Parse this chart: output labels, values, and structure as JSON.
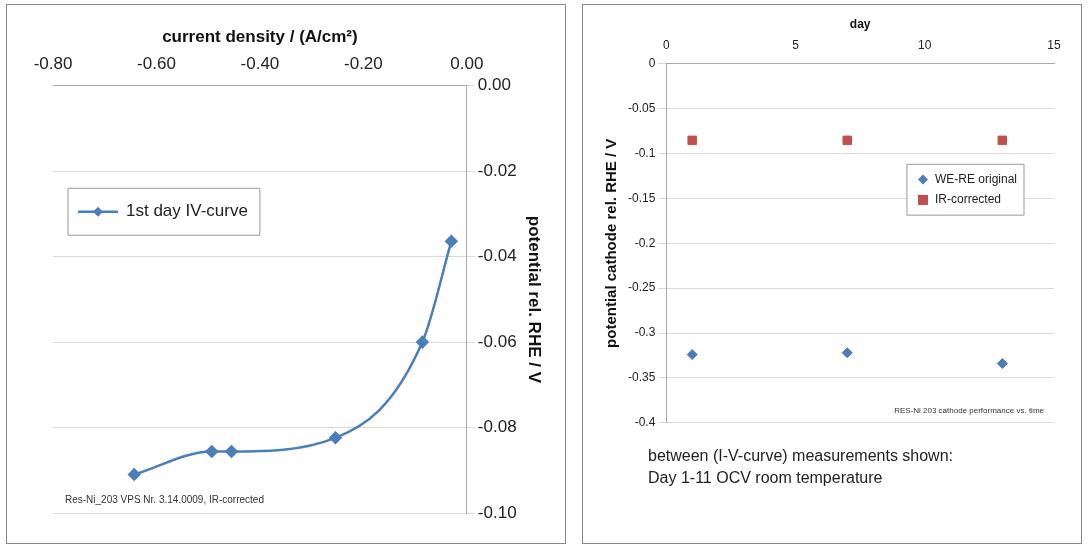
{
  "chart_data": [
    {
      "type": "line",
      "xlabel": "current density / (A/cm²)",
      "ylabel": "potential rel. RHE / V",
      "xlim": [
        -0.8,
        0
      ],
      "xticks": [
        {
          "value": -0.8,
          "label": "-0.80"
        },
        {
          "value": -0.6,
          "label": "-0.60"
        },
        {
          "value": -0.4,
          "label": "-0.40"
        },
        {
          "value": -0.2,
          "label": "-0.20"
        },
        {
          "value": 0,
          "label": "0.00"
        }
      ],
      "ylim": [
        -0.1,
        0
      ],
      "yticks": [
        {
          "value": -0.1,
          "label": "-0.10"
        },
        {
          "value": -0.08,
          "label": "-0.08"
        },
        {
          "value": -0.06,
          "label": "-0.06"
        },
        {
          "value": -0.04,
          "label": "-0.04"
        },
        {
          "value": -0.02,
          "label": "-0.02"
        },
        {
          "value": 0,
          "label": "0.00"
        }
      ],
      "grid": "y",
      "legend": "top left",
      "marker": "diamond",
      "series": [
        {
          "name": "1st day IV-curve",
          "color": "#4a7ebb",
          "x": [
            -0.643,
            -0.493,
            -0.455,
            -0.254,
            -0.086,
            -0.03
          ],
          "values": [
            -0.091,
            -0.0856,
            -0.0856,
            -0.0824,
            -0.06,
            -0.0364
          ]
        }
      ],
      "annotations": [
        "Res-Ni_203 VPS Nr. 3.14.0009, IR-corrected"
      ]
    },
    {
      "type": "scatter",
      "xlabel": "day",
      "ylabel": "potential cathode rel. RHE / V",
      "xlim": [
        0,
        15
      ],
      "xticks": [
        0,
        5,
        10,
        15
      ],
      "ylim": [
        -0.4,
        0
      ],
      "yticks": [
        -0.4,
        -0.35,
        -0.3,
        -0.25,
        -0.2,
        -0.15,
        -0.1,
        -0.05,
        0
      ],
      "grid": "y",
      "legend": "right",
      "series": [
        {
          "name": "WE-RE original",
          "color": "#4a7ebb",
          "marker": "diamond",
          "x": [
            1,
            7,
            13
          ],
          "values": [
            -0.324,
            -0.322,
            -0.334
          ]
        },
        {
          "name": "IR-corrected",
          "color": "#c0504d",
          "marker": "square",
          "x": [
            1,
            7,
            13
          ],
          "values": [
            -0.0853,
            -0.0853,
            -0.0853
          ]
        }
      ],
      "annotations": [
        "RES-Ni 203 cathode performance vs. time",
        "between (I-V-curve) measurements shown:\nDay 1-11 OCV room temperature"
      ]
    }
  ]
}
